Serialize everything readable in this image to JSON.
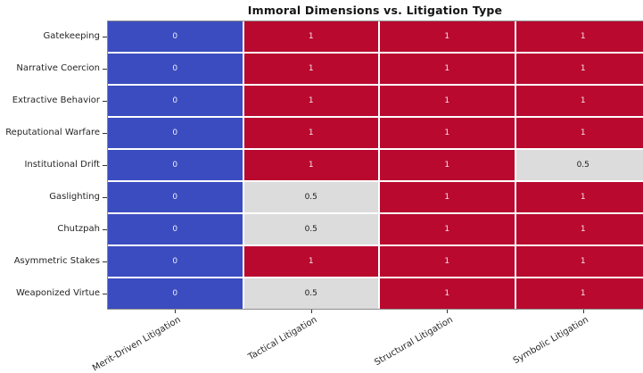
{
  "chart_data": {
    "type": "heatmap",
    "title": "Immoral Dimensions vs. Litigation Type",
    "xlabel": "",
    "ylabel": "",
    "rows": [
      "Gatekeeping",
      "Narrative Coercion",
      "Extractive Behavior",
      "Reputational Warfare",
      "Institutional Drift",
      "Gaslighting",
      "Chutzpah",
      "Asymmetric Stakes",
      "Weaponized Virtue"
    ],
    "columns": [
      "Merit-Driven Litigation",
      "Tactical Litigation",
      "Structural Litigation",
      "Symbolic Litigation"
    ],
    "values": [
      [
        0,
        1,
        1,
        1
      ],
      [
        0,
        1,
        1,
        1
      ],
      [
        0,
        1,
        1,
        1
      ],
      [
        0,
        1,
        1,
        1
      ],
      [
        0,
        1,
        1,
        0.5
      ],
      [
        0,
        0.5,
        1,
        1
      ],
      [
        0,
        0.5,
        1,
        1
      ],
      [
        0,
        1,
        1,
        1
      ],
      [
        0,
        0.5,
        1,
        1
      ]
    ],
    "value_range": [
      0,
      1
    ],
    "cell_styles": {
      "0": {
        "bg": "#3b4cc0",
        "fg": "#eef0f8"
      },
      "0.5": {
        "bg": "#dcdcdc",
        "fg": "#1a1a1a"
      },
      "1": {
        "bg": "#b9092f",
        "fg": "#f3e6e9"
      }
    },
    "gridline_color": "#ffffff",
    "legend": "none"
  }
}
